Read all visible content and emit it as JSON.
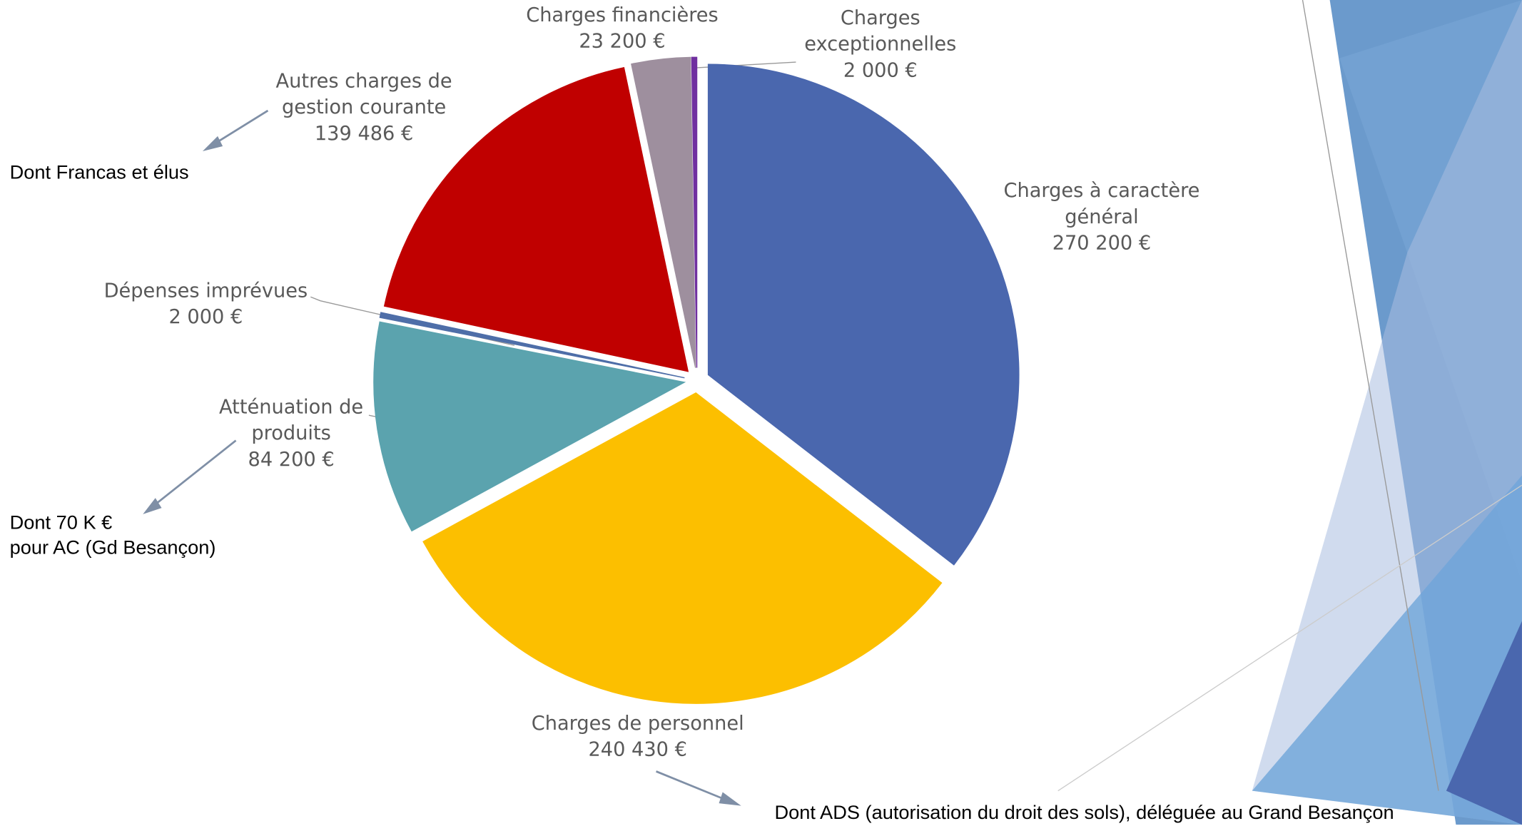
{
  "chart_data": {
    "type": "pie",
    "categories": [
      "Charges à caractère général",
      "Charges de personnel",
      "Atténuation de produits",
      "Dépenses imprévues",
      "Autres charges de gestion courante",
      "Charges financières",
      "Charges exceptionnelles"
    ],
    "values": [
      270200,
      240430,
      84200,
      2000,
      139486,
      23200,
      2000
    ],
    "value_labels": [
      "270 200 €",
      "240 430 €",
      "84 200 €",
      "2 000 €",
      "139 486 €",
      "23 200 €",
      "2 000 €"
    ],
    "colors": [
      "#4a67ae",
      "#fcbf00",
      "#5ba3ae",
      "#4e6ea8",
      "#c00000",
      "#9e8f9e",
      "#7030a0"
    ],
    "annotations": [
      "Dont Francas et élus",
      "Dont 70 K €\npour AC (Gd Besançon)",
      "Dont ADS (autorisation du droit des sols), déléguée au Grand Besançon"
    ]
  }
}
